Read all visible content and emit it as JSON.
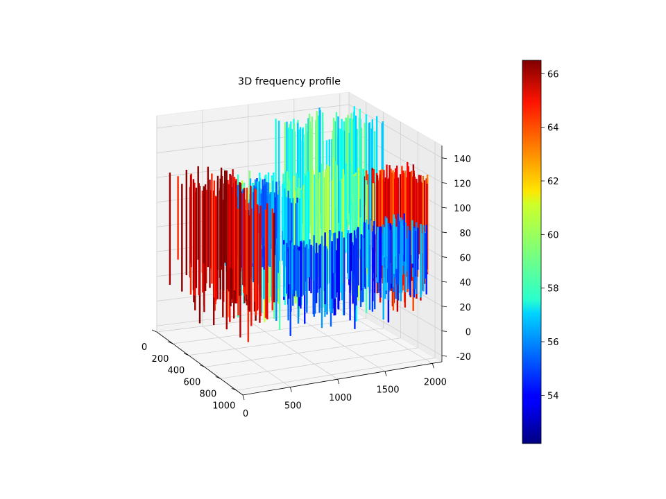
{
  "chart_data": {
    "type": "3d-surface",
    "title": "3D frequency profile",
    "xlabel": "",
    "ylabel": "",
    "zlabel": "",
    "x_axis": {
      "ticks": [
        0,
        200,
        400,
        600,
        800,
        1000
      ],
      "range": [
        0,
        1080
      ]
    },
    "y_axis": {
      "ticks": [
        0,
        500,
        1000,
        1500,
        2000
      ],
      "range": [
        0,
        2100
      ]
    },
    "z_axis": {
      "ticks": [
        -20,
        0,
        20,
        40,
        60,
        80,
        100,
        120,
        140
      ],
      "range": [
        -25,
        150
      ]
    },
    "colorbar": {
      "colormap": "jet",
      "range": [
        52.2,
        66.5
      ],
      "ticks": [
        54,
        56,
        58,
        60,
        62,
        64,
        66
      ]
    },
    "grid": true,
    "regions": [
      {
        "x_range": [
          0,
          1080
        ],
        "y_range": [
          0,
          600
        ],
        "z_top": 110,
        "z_bottom_mean": 30,
        "color_value": 65.5
      },
      {
        "x_range": [
          600,
          1080
        ],
        "y_range": [
          200,
          1450
        ],
        "z_top": 128,
        "z_bottom_mean": 45,
        "color_value": 59.0
      },
      {
        "x_range": [
          0,
          560
        ],
        "y_range": [
          1150,
          2100
        ],
        "z_top": 140,
        "z_bottom_mean": 60,
        "color_value": 58.0
      },
      {
        "x_range": [
          600,
          1080
        ],
        "y_range": [
          1600,
          2100
        ],
        "z_top": 118,
        "z_bottom_mean": 45,
        "color_value": 64.5
      },
      {
        "x_range": [
          0,
          560
        ],
        "y_range": [
          600,
          1150
        ],
        "z_top": 92,
        "z_bottom_mean": 45,
        "color_value": 56.0
      },
      {
        "x_range": [
          700,
          1080
        ],
        "y_range": [
          560,
          1500
        ],
        "z_top": 78,
        "z_bottom_mean": 35,
        "color_value": 55.0
      },
      {
        "x_range": [
          700,
          1080
        ],
        "y_range": [
          1500,
          2000
        ],
        "z_top": 80,
        "z_bottom_mean": 40,
        "color_value": 55.5
      }
    ]
  }
}
